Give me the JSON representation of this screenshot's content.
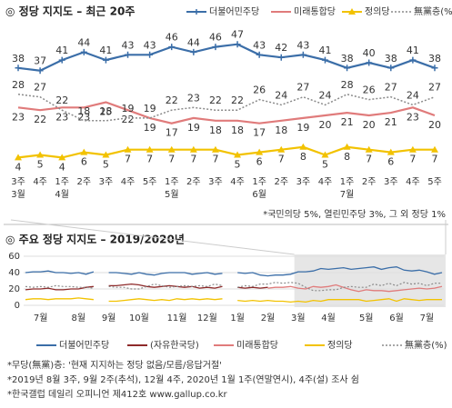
{
  "chart_data": [
    {
      "type": "line",
      "title": "◎ 정당 지지도 – 최근 20주",
      "categories": [
        "3주",
        "4주",
        "1주",
        "2주",
        "3주",
        "4주",
        "5주",
        "1주",
        "2주",
        "3주",
        "4주",
        "1주",
        "2주",
        "3주",
        "4주",
        "1주",
        "2주",
        "3주",
        "4주",
        "5주"
      ],
      "month_labels": [
        "3월",
        null,
        "4월",
        null,
        null,
        null,
        null,
        "5월",
        null,
        null,
        null,
        "6월",
        null,
        null,
        null,
        "7월",
        null,
        null,
        null,
        null
      ],
      "ylim": [
        0,
        50
      ],
      "legend": "top-right",
      "series": [
        {
          "name": "더불어민주당",
          "color": "#3b6ea8",
          "marker": "plus",
          "label_side": "above",
          "values": [
            38,
            37,
            41,
            44,
            41,
            43,
            43,
            46,
            44,
            46,
            47,
            43,
            42,
            43,
            41,
            38,
            40,
            38,
            41,
            38
          ]
        },
        {
          "name": "미래통합당",
          "color": "#e07b7b",
          "label_side": "below",
          "values": [
            23,
            22,
            23,
            23,
            25,
            22,
            19,
            17,
            19,
            18,
            18,
            17,
            18,
            19,
            20,
            21,
            20,
            21,
            23,
            20
          ]
        },
        {
          "name": "정의당",
          "color": "#f2c200",
          "marker": "triangle",
          "label_side": "below",
          "values": [
            4,
            5,
            4,
            6,
            5,
            7,
            7,
            7,
            7,
            7,
            5,
            6,
            7,
            8,
            5,
            8,
            7,
            6,
            7,
            7
          ]
        },
        {
          "name": "無黨층(%)",
          "color": "#8a8a8a",
          "style": "dotted",
          "label_side": "above",
          "values": [
            28,
            27,
            22,
            18,
            18,
            19,
            19,
            22,
            23,
            22,
            22,
            26,
            24,
            27,
            24,
            28,
            26,
            27,
            24,
            27
          ]
        }
      ],
      "note": "*국민의당 5%, 열린민주당 3%, 그 외 정당 1%"
    },
    {
      "type": "line",
      "title": "◎ 주요 정당 지지도 – 2019/2020년",
      "categories": [
        null,
        null,
        "7월",
        null,
        null,
        null,
        null,
        "8월",
        null,
        null,
        null,
        "9월",
        null,
        null,
        null,
        "10월",
        null,
        null,
        null,
        null,
        "11월",
        null,
        null,
        null,
        "12월",
        null,
        null,
        null,
        "1월",
        null,
        null,
        null,
        "2월",
        null,
        null,
        null,
        "3월",
        null,
        null,
        null,
        "4월",
        null,
        null,
        null,
        null,
        "5월",
        null,
        null,
        null,
        "6월",
        null,
        null,
        null,
        "7월",
        null,
        null
      ],
      "ylim": [
        0,
        60
      ],
      "yticks": [
        0,
        20,
        40,
        60
      ],
      "grid": true,
      "legend": "bottom",
      "series": [
        {
          "name": "더불어민주당",
          "color": "#3b6ea8",
          "values": [
            40,
            41,
            41,
            42,
            40,
            40,
            39,
            40,
            38,
            41,
            null,
            40,
            40,
            39,
            38,
            40,
            38,
            37,
            39,
            40,
            40,
            40,
            38,
            39,
            40,
            38,
            39,
            null,
            40,
            39,
            40,
            37,
            36,
            37,
            37,
            38,
            41,
            41,
            42,
            45,
            44,
            45,
            46,
            44,
            45,
            46,
            47,
            44,
            46,
            47,
            43,
            42,
            43,
            41,
            38,
            40
          ]
        },
        {
          "name": "(자유한국당)",
          "color": "#8e2a2a",
          "values": [
            19,
            20,
            20,
            21,
            19,
            19,
            20,
            20,
            22,
            23,
            null,
            24,
            24,
            25,
            26,
            25,
            23,
            22,
            23,
            24,
            23,
            22,
            23,
            21,
            22,
            21,
            23,
            null,
            22,
            21,
            22,
            21,
            22,
            null,
            null,
            null,
            null,
            null,
            null,
            null,
            null,
            null,
            null,
            null,
            null,
            null,
            null,
            null,
            null,
            null,
            null,
            null,
            null,
            null,
            null,
            null
          ]
        },
        {
          "name": "미래통합당",
          "color": "#e07b7b",
          "values": [
            null,
            null,
            null,
            null,
            null,
            null,
            null,
            null,
            null,
            null,
            null,
            null,
            null,
            null,
            null,
            null,
            null,
            null,
            null,
            null,
            null,
            null,
            null,
            null,
            null,
            null,
            null,
            null,
            null,
            null,
            null,
            null,
            21,
            22,
            22,
            23,
            21,
            20,
            23,
            22,
            23,
            25,
            22,
            19,
            17,
            19,
            18,
            18,
            17,
            18,
            19,
            20,
            21,
            20,
            21,
            23
          ]
        },
        {
          "name": "정의당",
          "color": "#f2c200",
          "values": [
            7,
            8,
            8,
            7,
            8,
            8,
            8,
            9,
            8,
            7,
            null,
            5,
            5,
            6,
            7,
            8,
            7,
            6,
            7,
            6,
            8,
            7,
            8,
            7,
            8,
            7,
            8,
            null,
            6,
            5,
            6,
            5,
            6,
            5,
            5,
            4,
            5,
            4,
            6,
            5,
            7,
            7,
            7,
            7,
            7,
            5,
            6,
            7,
            8,
            5,
            8,
            7,
            6,
            7,
            7,
            7
          ]
        },
        {
          "name": "無黨층(%)",
          "color": "#8a8a8a",
          "style": "dotted",
          "values": [
            23,
            22,
            23,
            22,
            24,
            23,
            23,
            22,
            22,
            21,
            null,
            23,
            22,
            22,
            20,
            20,
            23,
            26,
            24,
            22,
            23,
            24,
            23,
            24,
            23,
            26,
            24,
            null,
            22,
            24,
            23,
            26,
            26,
            28,
            27,
            28,
            27,
            22,
            18,
            18,
            19,
            19,
            22,
            23,
            22,
            22,
            26,
            24,
            27,
            24,
            28,
            26,
            27,
            24,
            27,
            27
          ]
        }
      ],
      "notes": [
        "*무당(無黨)층: '현재 지지하는 정당 없음/모름/응답거절'",
        "*2019년 8월 3주, 9월 2주(추석), 12월 4주, 2020년 1월 1주(연말연시), 4주(설) 조사 쉼",
        "*한국갤럽 데일리 오피니언 제412호 www.gallup.co.kr"
      ]
    }
  ]
}
